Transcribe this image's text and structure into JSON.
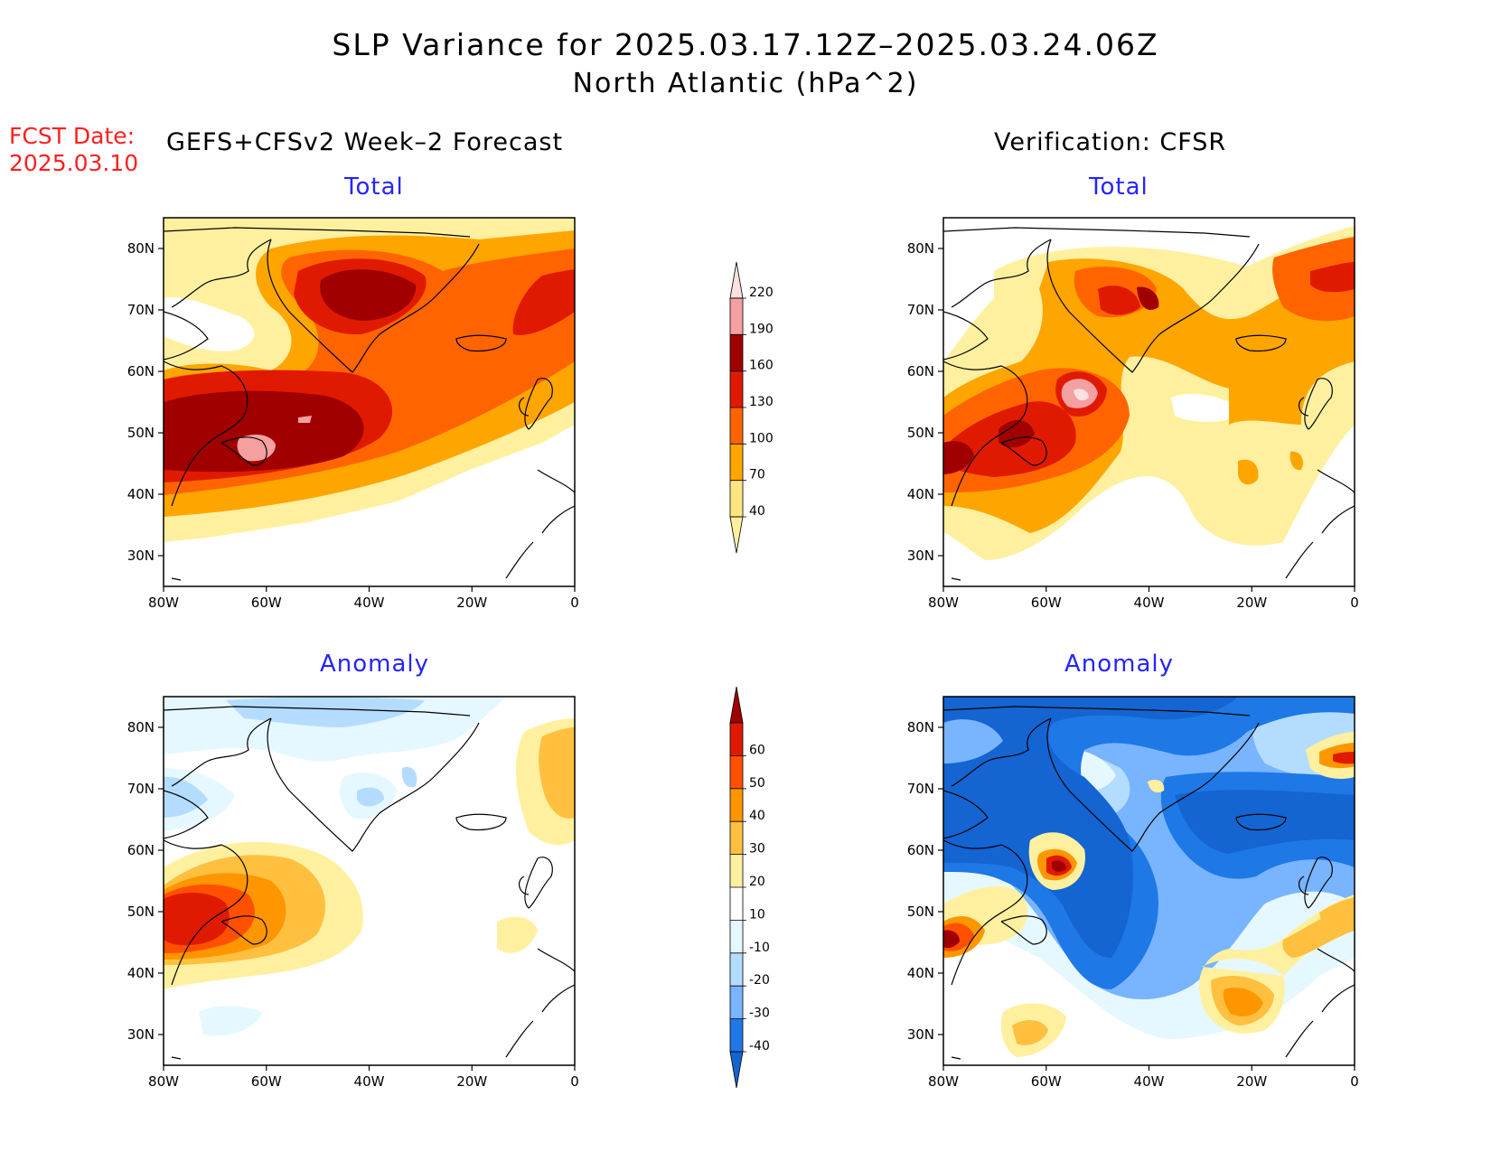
{
  "title": {
    "line1": "SLP Variance for 2025.03.17.12Z–2025.03.24.06Z",
    "line2": "North Atlantic (hPa^2)"
  },
  "forecast_date": {
    "label": "FCST Date:",
    "value": "2025.03.10"
  },
  "left_header": "GEFS+CFSv2 Week–2 Forecast",
  "right_header": "Verification: CFSR",
  "panels": [
    {
      "id": "fcst-total",
      "title": "Total"
    },
    {
      "id": "verif-total",
      "title": "Total"
    },
    {
      "id": "fcst-anomaly",
      "title": "Anomaly"
    },
    {
      "id": "verif-anomaly",
      "title": "Anomaly"
    }
  ],
  "axes": {
    "lat_labels": [
      "80N",
      "70N",
      "60N",
      "50N",
      "40N",
      "30N"
    ],
    "lat_values": [
      80,
      70,
      60,
      50,
      40,
      30
    ],
    "lon_labels": [
      "80W",
      "60W",
      "40W",
      "20W",
      "0"
    ],
    "lon_values": [
      -80,
      -60,
      -40,
      -20,
      0
    ],
    "lat_range": [
      25,
      85
    ],
    "lon_range": [
      -80,
      0
    ]
  },
  "colorbars": {
    "total": {
      "levels": [
        "40",
        "70",
        "100",
        "130",
        "160",
        "190",
        "220"
      ],
      "colors": [
        "#fff0a0",
        "#ffe680",
        "#ffa500",
        "#ff6400",
        "#e01a00",
        "#a00000",
        "#f4a0a0",
        "#fde0e0"
      ]
    },
    "anomaly": {
      "levels": [
        "-40",
        "-30",
        "-20",
        "-10",
        "10",
        "20",
        "30",
        "40",
        "50",
        "60"
      ],
      "colors": [
        "#1464d2",
        "#1e78e6",
        "#78b4ff",
        "#b4dcff",
        "#e6f8ff",
        "#ffffff",
        "#fff0a0",
        "#ffc040",
        "#ff9600",
        "#ff5000",
        "#e01a00",
        "#a00000"
      ]
    }
  }
}
